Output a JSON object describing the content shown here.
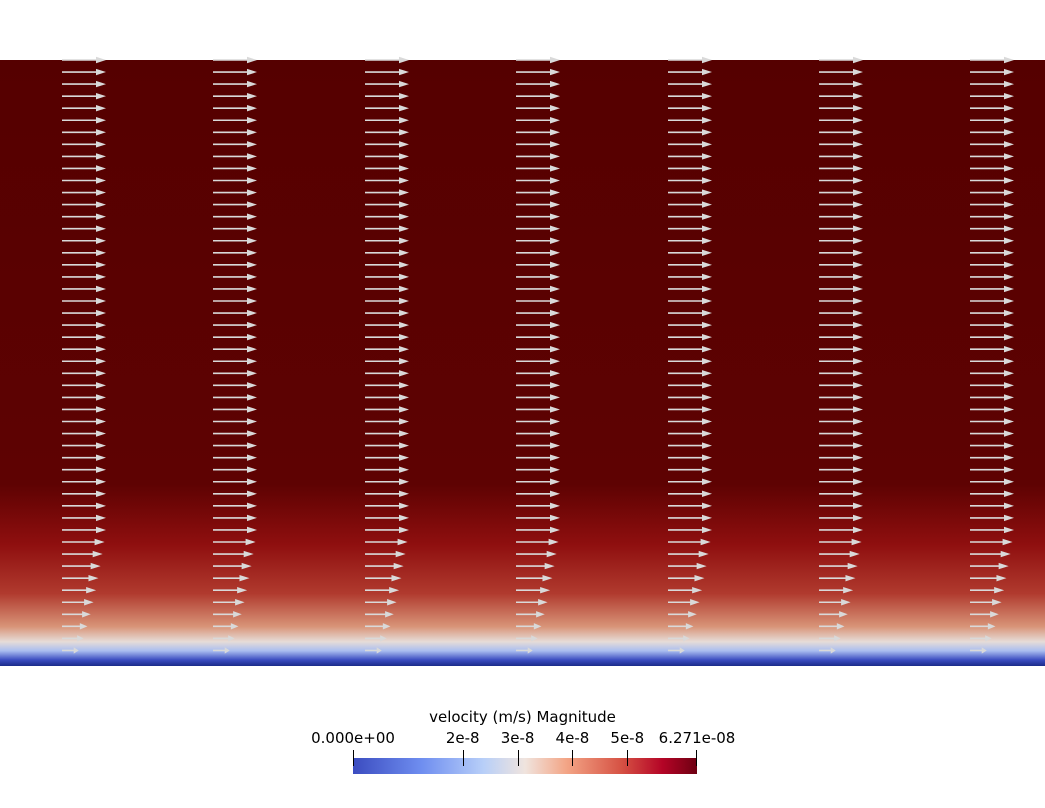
{
  "chart_data": {
    "type": "heatmap",
    "title": "",
    "color_field": "velocity (m/s) Magnitude",
    "colormap": "Cool to Warm",
    "range": [
      0,
      6.271e-08
    ],
    "legend": {
      "title": "velocity (m/s) Magnitude",
      "tick_labels": [
        "0.000e+00",
        "2e-8",
        "3e-8",
        "4e-8",
        "5e-8",
        "6.271e-08"
      ],
      "tick_values": [
        0,
        2e-08,
        3e-08,
        4e-08,
        5e-08,
        6.271e-08
      ],
      "placement": "bottom-center"
    },
    "profile_note": "velocity magnitude rises from 0 at the bottom wall to maximum in the upper region",
    "glyph_columns": 7,
    "glyph_rows": 50,
    "glyph_direction": "+x",
    "colors": {
      "min": "#3b4cc0",
      "mid": "#f0e4de",
      "max": "#5a0000",
      "glyph": "#d9d9d9"
    }
  }
}
